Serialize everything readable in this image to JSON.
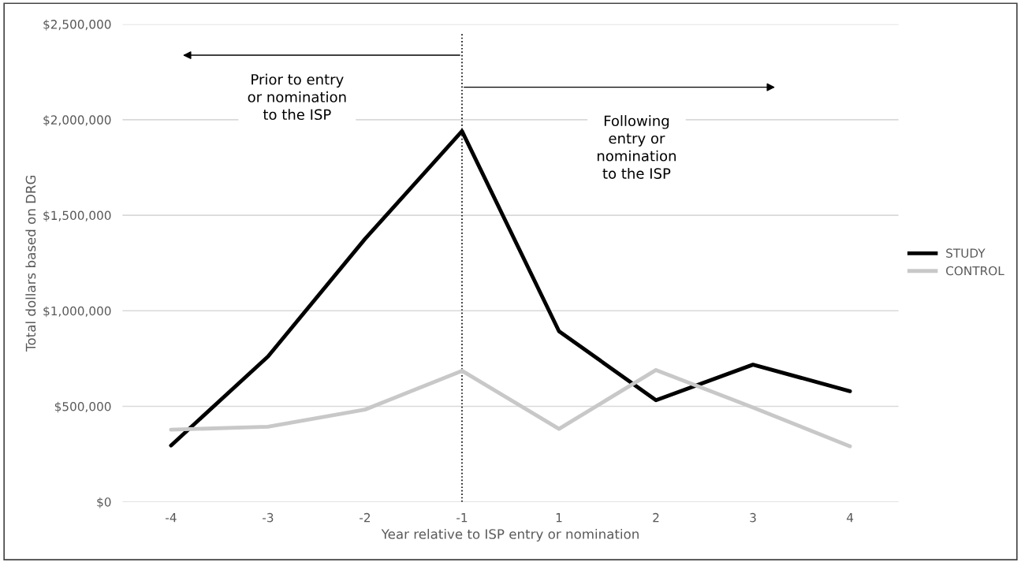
{
  "chart_data": {
    "type": "line",
    "xlabel": "Year relative to ISP entry or nomination",
    "ylabel": "Total dollars based on DRG",
    "categories": [
      "-4",
      "-3",
      "-2",
      "-1",
      "1",
      "2",
      "3",
      "4"
    ],
    "series": [
      {
        "name": "STUDY",
        "color": "#000000",
        "values": [
          295000,
          761000,
          1376000,
          1940000,
          893000,
          532000,
          718000,
          579000
        ]
      },
      {
        "name": "CONTROL",
        "color": "#c8c8c8",
        "values": [
          378000,
          393000,
          483000,
          686000,
          382000,
          690000,
          494000,
          291000
        ]
      }
    ],
    "ylim": [
      0,
      2500000
    ],
    "yticks": [
      {
        "value": 0,
        "label": "$0"
      },
      {
        "value": 500000,
        "label": "$500,000"
      },
      {
        "value": 1000000,
        "label": "$1,000,000"
      },
      {
        "value": 1500000,
        "label": "$1,500,000"
      },
      {
        "value": 2000000,
        "label": "$2,000,000"
      },
      {
        "value": 2500000,
        "label": "$2,500,000"
      }
    ],
    "ref_lines": [
      {
        "axis": "x",
        "value": "-1",
        "color": "#000000",
        "line_style": "dotted"
      }
    ],
    "annotations": [
      "Prior to entry\nor nomination\nto the ISP",
      "Following\nentry or\nnomination\nto the ISP"
    ],
    "grid": "y",
    "legend": "right",
    "marker": "none",
    "line_style": "solid"
  }
}
